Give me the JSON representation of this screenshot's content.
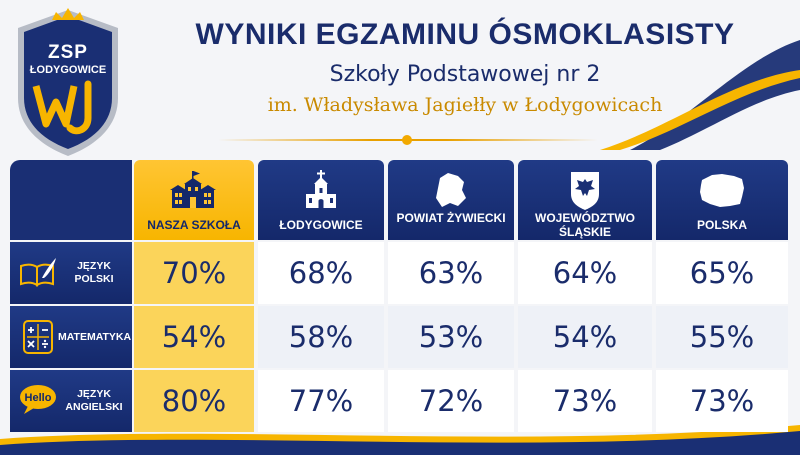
{
  "logo": {
    "line1": "ZSP",
    "line2": "ŁODYGOWICE",
    "monogram": "WJ"
  },
  "header": {
    "title": "WYNIKI EGZAMINU ÓSMOKLASISTY",
    "subtitle": "Szkoły Podstawowej nr 2",
    "subtitle2": "im. Władysława Jagiełły w Łodygowicach"
  },
  "colors": {
    "navy": "#1a2c6b",
    "gold": "#f7b500",
    "light_gold": "#fbd45a"
  },
  "table": {
    "columns": [
      {
        "label": "NASZA SZKOŁA",
        "icon": "school-building-icon"
      },
      {
        "label": "ŁODYGOWICE",
        "icon": "church-icon"
      },
      {
        "label": "POWIAT ŻYWIECKI",
        "icon": "county-map-icon"
      },
      {
        "label": "WOJEWÓDZTWO ŚLĄSKIE",
        "icon": "eagle-crest-icon"
      },
      {
        "label": "POLSKA",
        "icon": "poland-map-icon"
      }
    ],
    "rows": [
      {
        "label": "JĘZYK POLSKI",
        "icon": "book-quill-icon",
        "values": [
          "70%",
          "68%",
          "63%",
          "64%",
          "65%"
        ]
      },
      {
        "label": "MATEMATYKA",
        "icon": "calculator-icon",
        "values": [
          "54%",
          "58%",
          "53%",
          "54%",
          "55%"
        ]
      },
      {
        "label": "JĘZYK ANGIELSKI",
        "icon": "hello-bubble-icon",
        "values": [
          "80%",
          "77%",
          "72%",
          "73%",
          "73%"
        ]
      }
    ],
    "hello_text": "Hello"
  }
}
